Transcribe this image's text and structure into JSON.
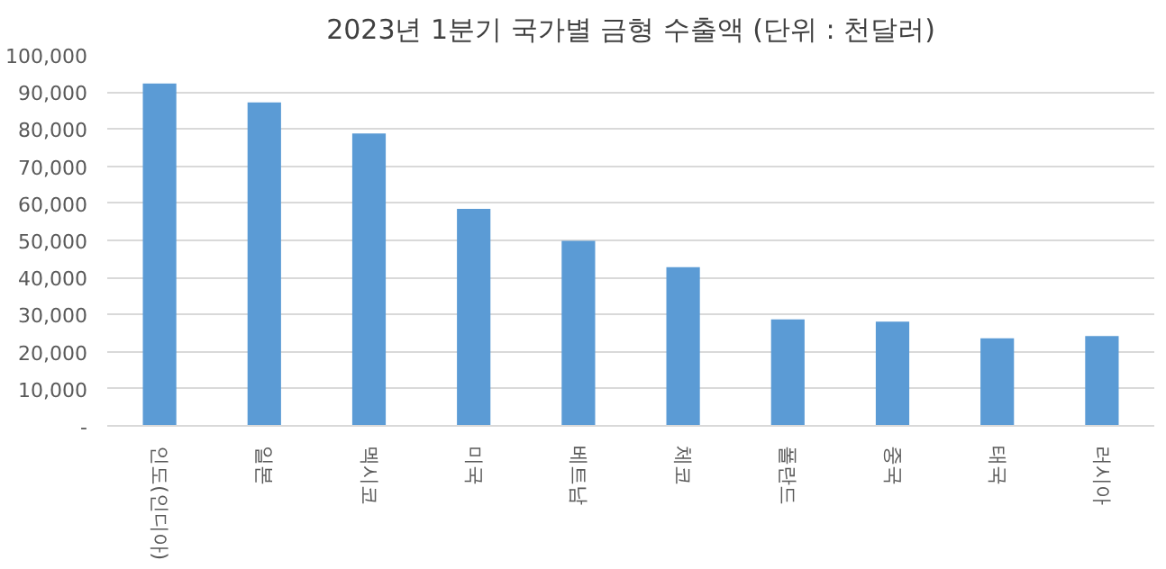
{
  "chart_data": {
    "type": "bar",
    "title": "2023년 1분기 국가별 금형 수출액 (단위 : 천달러)",
    "categories": [
      "인도(인디아)",
      "일본",
      "멕시코",
      "미국",
      "베트남",
      "체코",
      "폴란드",
      "중국",
      "태국",
      "러시아"
    ],
    "values": [
      92300,
      87200,
      78800,
      58500,
      49900,
      42800,
      28700,
      28100,
      23600,
      24200
    ],
    "color": "#5b9bd5",
    "ylim": [
      0,
      100000
    ],
    "yticks": [
      {
        "value": 0,
        "label": "-"
      },
      {
        "value": 10000,
        "label": "10,000"
      },
      {
        "value": 20000,
        "label": "20,000"
      },
      {
        "value": 30000,
        "label": "30,000"
      },
      {
        "value": 40000,
        "label": "40,000"
      },
      {
        "value": 50000,
        "label": "50,000"
      },
      {
        "value": 60000,
        "label": "60,000"
      },
      {
        "value": 70000,
        "label": "70,000"
      },
      {
        "value": 80000,
        "label": "80,000"
      },
      {
        "value": 90000,
        "label": "90,000"
      },
      {
        "value": 100000,
        "label": "100,000"
      }
    ],
    "grid": "y"
  }
}
